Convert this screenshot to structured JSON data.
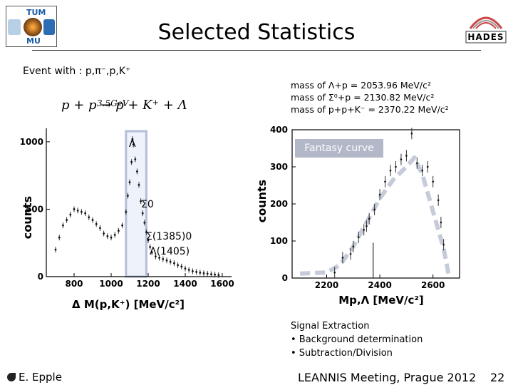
{
  "slide": {
    "title": "Selected Statistics",
    "event_line": "Event with : p,π⁻,p,K⁺",
    "reaction": "p + p → p + K⁺ + Λ",
    "reaction_energy": "3.5GeV",
    "masses": [
      "mass of Λ+p  = 2053.96 MeV/c²",
      "mass of Σ⁰+p = 2130.82 MeV/c²",
      "mass of p+p+K⁻ = 2370.22 MeV/c²"
    ],
    "left_labels": {
      "lambda": "Λ",
      "sigma0": "Σ0",
      "sigma1385": "Σ(1385)0",
      "lambda1405": "Λ(1405)"
    },
    "fantasy_label": "Fantasy curve",
    "signal": {
      "heading": "Signal Extraction",
      "items": [
        "• Background determination",
        "• Subtraction/Division"
      ]
    },
    "footer": {
      "author": "E. Epple",
      "meeting": "LEANNIS Meeting, Prague 2012",
      "page": "22"
    },
    "logos": {
      "left_top": "TUM",
      "left_bottom": "MU",
      "right": "HADES"
    }
  },
  "chart_data": [
    {
      "type": "scatter",
      "xlabel": "Δ M(p,K⁺) [MeV/c²]",
      "ylabel": "counts",
      "xlim": [
        650,
        1650
      ],
      "ylim": [
        0,
        1100
      ],
      "xticks": [
        "800",
        "1000",
        "1200",
        "1400",
        "1600"
      ],
      "yticks": [
        "0",
        "500",
        "1000"
      ],
      "highlight_band": [
        1080,
        1190
      ],
      "x": [
        700,
        720,
        740,
        760,
        780,
        800,
        820,
        840,
        860,
        880,
        900,
        920,
        940,
        960,
        980,
        1000,
        1020,
        1040,
        1060,
        1080,
        1090,
        1100,
        1110,
        1115,
        1120,
        1130,
        1140,
        1150,
        1160,
        1170,
        1180,
        1190,
        1200,
        1210,
        1220,
        1240,
        1260,
        1280,
        1300,
        1320,
        1340,
        1360,
        1380,
        1400,
        1420,
        1440,
        1460,
        1480,
        1500,
        1520,
        1540,
        1560,
        1580
      ],
      "y": [
        200,
        290,
        380,
        420,
        460,
        500,
        490,
        480,
        470,
        440,
        420,
        390,
        360,
        320,
        300,
        290,
        310,
        340,
        380,
        480,
        600,
        700,
        850,
        1020,
        980,
        870,
        780,
        680,
        560,
        470,
        400,
        330,
        270,
        220,
        180,
        150,
        140,
        130,
        120,
        110,
        100,
        85,
        75,
        60,
        50,
        40,
        35,
        30,
        25,
        22,
        18,
        15,
        12
      ]
    },
    {
      "type": "scatter",
      "xlabel": "Mp,Λ [MeV/c²]",
      "ylabel": "counts",
      "xlim": [
        2070,
        2700
      ],
      "ylim": [
        0,
        400
      ],
      "xticks": [
        "2200",
        "2400",
        "2600"
      ],
      "yticks": [
        "0",
        "100",
        "200",
        "300",
        "400"
      ],
      "vertical_line": 2375,
      "x": [
        2230,
        2260,
        2290,
        2300,
        2320,
        2340,
        2350,
        2360,
        2380,
        2400,
        2420,
        2440,
        2460,
        2480,
        2500,
        2520,
        2540,
        2560,
        2580,
        2600,
        2620,
        2630,
        2640
      ],
      "y": [
        15,
        55,
        65,
        85,
        110,
        130,
        140,
        160,
        185,
        225,
        260,
        290,
        300,
        320,
        330,
        390,
        310,
        290,
        300,
        260,
        210,
        150,
        90
      ],
      "fantasy_curve": {
        "x": [
          2100,
          2200,
          2250,
          2300,
          2350,
          2400,
          2450,
          2500,
          2530,
          2560,
          2600,
          2640,
          2660
        ],
        "y": [
          12,
          15,
          35,
          85,
          150,
          215,
          265,
          300,
          325,
          280,
          180,
          80,
          5
        ]
      }
    }
  ]
}
